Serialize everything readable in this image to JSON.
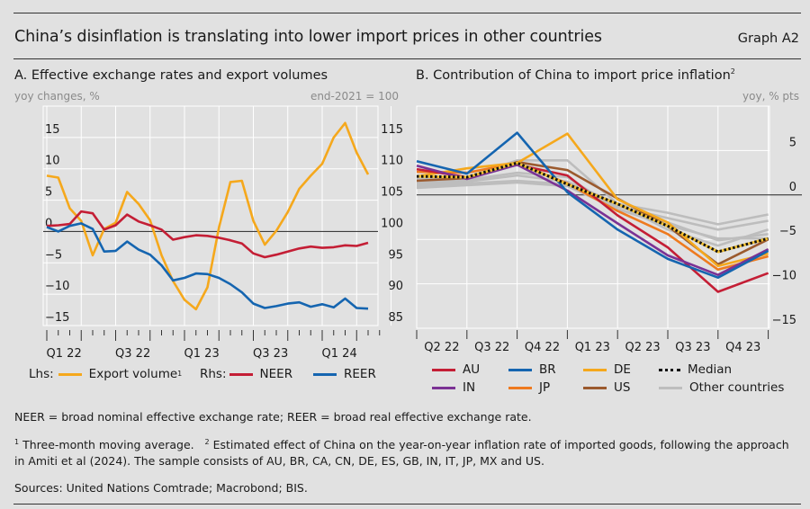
{
  "header": {
    "title": "China’s disinflation is translating into lower import prices in other countries",
    "graph_id": "Graph A2"
  },
  "panel_a": {
    "title": "A. Effective exchange rates and export volumes",
    "left_unit": "yoy changes, %",
    "right_unit": "end-2021 = 100",
    "legend": {
      "lhs_label": "Lhs:",
      "rhs_label": "Rhs:",
      "export_label": "Export volume",
      "export_sup": "1",
      "neer_label": "NEER",
      "reer_label": "REER"
    }
  },
  "panel_b": {
    "title": "B. Contribution of China to import price inflation",
    "title_sup": "2",
    "unit": "yoy, % pts",
    "legend": [
      "AU",
      "BR",
      "DE",
      "Median",
      "IN",
      "JP",
      "US",
      "Other countries"
    ]
  },
  "notes": {
    "abbrev": "NEER = broad nominal effective exchange rate; REER = broad real effective exchange rate.",
    "fn1_mark": "1",
    "fn1": "Three-month moving average.",
    "fn2_mark": "2",
    "fn2_line1": "Estimated effect of China on the year-on-year inflation rate of imported goods, following the approach",
    "fn2_line2": "in Amiti et al (2024). The sample consists of AU, BR, CA, CN, DE, ES, GB, IN, IT, JP, MX and US.",
    "sources": "Sources: United Nations Comtrade; Macrobond; BIS."
  },
  "chart_data": [
    {
      "type": "line",
      "title": "A. Effective exchange rates and export volumes",
      "xlabel": "",
      "ylabel_left": "yoy changes, %",
      "ylabel_right": "end-2021 = 100",
      "x": [
        "Jan-22",
        "Feb-22",
        "Mar-22",
        "Apr-22",
        "May-22",
        "Jun-22",
        "Jul-22",
        "Aug-22",
        "Sep-22",
        "Oct-22",
        "Nov-22",
        "Dec-22",
        "Jan-23",
        "Feb-23",
        "Mar-23",
        "Apr-23",
        "May-23",
        "Jun-23",
        "Jul-23",
        "Aug-23",
        "Sep-23",
        "Oct-23",
        "Nov-23",
        "Dec-23",
        "Jan-24",
        "Feb-24",
        "Mar-24",
        "Apr-24",
        "May-24"
      ],
      "x_tick_labels": [
        "Q1 22",
        "Q3 22",
        "Q1 23",
        "Q3 23",
        "Q1 24"
      ],
      "ylim_left": [
        -15,
        20
      ],
      "yticks_left": [
        -15,
        -10,
        -5,
        0,
        5,
        10,
        15
      ],
      "ylim_right": [
        85,
        120
      ],
      "yticks_right": [
        85,
        90,
        95,
        100,
        105,
        110,
        115
      ],
      "grid": true,
      "legend_position": "bottom",
      "series": [
        {
          "name": "Export volume",
          "axis": "left",
          "color": "#f5a81c",
          "values": [
            8.9,
            8.6,
            3.7,
            1.7,
            -3.8,
            0.4,
            1.4,
            6.3,
            4.4,
            1.8,
            -3.8,
            -7.9,
            -10.9,
            -12.4,
            -8.9,
            0.6,
            7.9,
            8.1,
            1.7,
            -2.1,
            0.1,
            3.1,
            6.8,
            8.9,
            10.8,
            15.0,
            17.3,
            12.6,
            9.1
          ]
        },
        {
          "name": "NEER",
          "axis": "right",
          "color": "#c41e35",
          "values": [
            100.9,
            101.0,
            101.2,
            103.2,
            102.9,
            100.3,
            101.0,
            102.7,
            101.6,
            101.0,
            100.3,
            98.7,
            99.1,
            99.4,
            99.3,
            99.0,
            98.6,
            98.1,
            96.5,
            95.9,
            96.3,
            96.8,
            97.3,
            97.6,
            97.4,
            97.5,
            97.8,
            97.7,
            98.2
          ]
        },
        {
          "name": "REER",
          "axis": "right",
          "color": "#1565b0",
          "values": [
            100.7,
            100.0,
            100.9,
            101.3,
            100.4,
            96.8,
            96.9,
            98.4,
            97.1,
            96.3,
            94.6,
            92.2,
            92.6,
            93.3,
            93.2,
            92.6,
            91.6,
            90.3,
            88.5,
            87.8,
            88.1,
            88.5,
            88.7,
            88.0,
            88.4,
            87.9,
            89.3,
            87.8,
            87.7
          ]
        }
      ]
    },
    {
      "type": "line",
      "title": "B. Contribution of China to import price inflation",
      "xlabel": "",
      "ylabel": "yoy, % pts",
      "x": [
        "Q2 22",
        "Q3 22",
        "Q4 22",
        "Q1 23",
        "Q2 23",
        "Q3 23",
        "Q4 23"
      ],
      "point_x": [
        "Q1 22 end",
        "Q2 22 end",
        "Q3 22 end",
        "Q4 22 end",
        "Q1 23 end",
        "Q2 23 end",
        "Q3 23 end",
        "Q4 23 end"
      ],
      "ylim": [
        -15,
        10
      ],
      "yticks": [
        -15,
        -10,
        -5,
        0,
        5
      ],
      "grid": true,
      "legend_position": "bottom",
      "series": [
        {
          "name": "AU",
          "color": "#c41e35",
          "values": [
            2.9,
            2.0,
            3.4,
            2.2,
            -2.3,
            -5.9,
            -10.9,
            -8.8
          ]
        },
        {
          "name": "BR",
          "color": "#1565b0",
          "values": [
            3.8,
            2.4,
            7.0,
            0.3,
            -3.9,
            -7.2,
            -9.3,
            -6.3
          ]
        },
        {
          "name": "DE",
          "color": "#f5a81c",
          "values": [
            2.1,
            3.0,
            3.6,
            6.9,
            -0.5,
            -3.1,
            -8.0,
            -6.6
          ]
        },
        {
          "name": "IN",
          "color": "#7b3294",
          "values": [
            3.3,
            1.8,
            3.4,
            0.5,
            -3.2,
            -6.8,
            -9.0,
            -6.1
          ]
        },
        {
          "name": "JP",
          "color": "#ee7a1f",
          "values": [
            2.6,
            2.5,
            3.6,
            1.3,
            -1.8,
            -4.4,
            -8.4,
            -6.9
          ]
        },
        {
          "name": "US",
          "color": "#9b5a2e",
          "values": [
            1.6,
            1.9,
            3.7,
            2.8,
            -0.4,
            -3.5,
            -7.8,
            -5.0
          ]
        },
        {
          "name": "Median",
          "color": "#111111",
          "style": "dotted",
          "values": [
            2.1,
            2.0,
            3.6,
            1.2,
            -1.0,
            -3.5,
            -6.4,
            -4.9
          ]
        },
        {
          "name": "Other countries",
          "color": "#bdbdbd",
          "values": [
            [
              1.2,
              1.5,
              2.2,
              1.5,
              -1.0,
              -2.0,
              -3.3,
              -2.2
            ],
            [
              1.0,
              1.3,
              1.6,
              1.2,
              -1.3,
              -2.6,
              -3.9,
              -2.9
            ],
            [
              1.4,
              1.7,
              2.5,
              2.0,
              -1.6,
              -3.1,
              -5.1,
              -4.4
            ],
            [
              1.8,
              2.0,
              3.9,
              3.9,
              -1.0,
              -3.9,
              -5.7,
              -3.9
            ],
            [
              0.8,
              1.1,
              1.4,
              1.0,
              -1.6,
              -3.4,
              -4.9,
              -4.9
            ]
          ]
        }
      ]
    }
  ]
}
